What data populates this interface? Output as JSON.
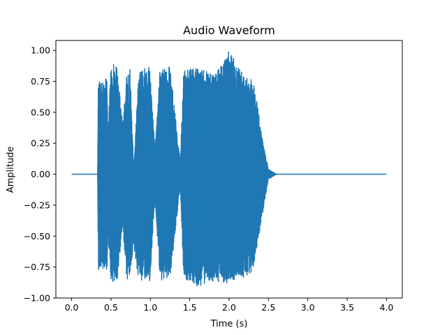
{
  "chart_data": {
    "type": "line",
    "title": "Audio Waveform",
    "xlabel": "Time (s)",
    "ylabel": "Amplitude",
    "xlim": [
      -0.2,
      4.2
    ],
    "ylim": [
      -1.0,
      1.08
    ],
    "xticks": [
      0.0,
      0.5,
      1.0,
      1.5,
      2.0,
      2.5,
      3.0,
      3.5,
      4.0
    ],
    "xtick_labels": [
      "0.0",
      "0.5",
      "1.0",
      "1.5",
      "2.0",
      "2.5",
      "3.0",
      "3.5",
      "4.0"
    ],
    "yticks": [
      -1.0,
      -0.75,
      -0.5,
      -0.25,
      0.0,
      0.25,
      0.5,
      0.75,
      1.0
    ],
    "ytick_labels": [
      "−1.00",
      "−0.75",
      "−0.50",
      "−0.25",
      "0.00",
      "0.25",
      "0.50",
      "0.75",
      "1.00"
    ],
    "grid": false,
    "series": [
      {
        "color": "#1f77b4",
        "x_range": [
          0.0,
          4.0
        ],
        "envelope": [
          {
            "t": 0.0,
            "upper": 0.0,
            "lower": 0.0
          },
          {
            "t": 0.33,
            "upper": 0.0,
            "lower": 0.0
          },
          {
            "t": 0.34,
            "upper": 0.77,
            "lower": -0.77
          },
          {
            "t": 0.45,
            "upper": 0.77,
            "lower": -0.78
          },
          {
            "t": 0.46,
            "upper": 0.3,
            "lower": -0.5
          },
          {
            "t": 0.5,
            "upper": 0.91,
            "lower": -0.87
          },
          {
            "t": 0.58,
            "upper": 0.86,
            "lower": -0.86
          },
          {
            "t": 0.65,
            "upper": 0.4,
            "lower": -0.4
          },
          {
            "t": 0.7,
            "upper": 0.8,
            "lower": -0.87
          },
          {
            "t": 0.74,
            "upper": 0.88,
            "lower": -0.8
          },
          {
            "t": 0.79,
            "upper": 0.03,
            "lower": -0.6
          },
          {
            "t": 0.85,
            "upper": 0.83,
            "lower": -0.86
          },
          {
            "t": 0.99,
            "upper": 0.89,
            "lower": -0.9
          },
          {
            "t": 1.06,
            "upper": 0.2,
            "lower": -0.2
          },
          {
            "t": 1.12,
            "upper": 0.83,
            "lower": -0.86
          },
          {
            "t": 1.25,
            "upper": 0.87,
            "lower": -0.84
          },
          {
            "t": 1.38,
            "upper": 0.1,
            "lower": -0.1
          },
          {
            "t": 1.42,
            "upper": 0.83,
            "lower": -0.84
          },
          {
            "t": 1.6,
            "upper": 0.87,
            "lower": -0.91
          },
          {
            "t": 1.8,
            "upper": 0.8,
            "lower": -0.86
          },
          {
            "t": 2.0,
            "upper": 1.0,
            "lower": -0.88
          },
          {
            "t": 2.2,
            "upper": 0.8,
            "lower": -0.83
          },
          {
            "t": 2.3,
            "upper": 0.78,
            "lower": -0.78
          },
          {
            "t": 2.35,
            "upper": 0.6,
            "lower": -0.6
          },
          {
            "t": 2.43,
            "upper": 0.25,
            "lower": -0.3
          },
          {
            "t": 2.5,
            "upper": 0.04,
            "lower": -0.04
          },
          {
            "t": 2.6,
            "upper": 0.0,
            "lower": 0.0
          },
          {
            "t": 4.0,
            "upper": 0.0,
            "lower": 0.0
          }
        ]
      }
    ]
  }
}
